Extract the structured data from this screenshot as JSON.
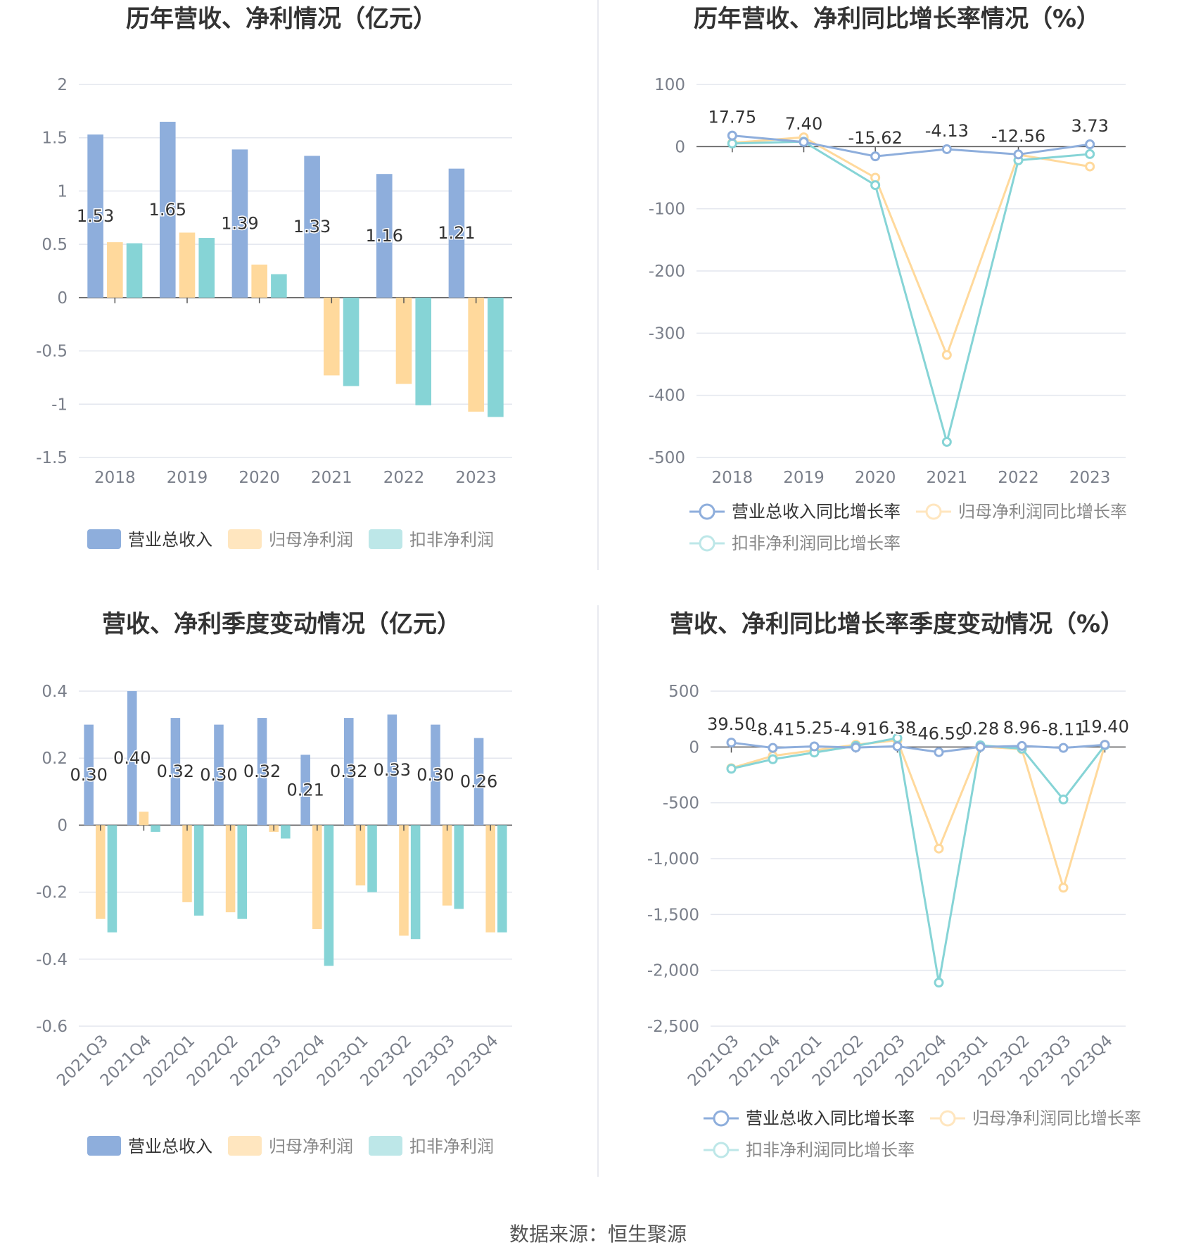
{
  "source_label": "数据来源：恒生聚源",
  "colors": {
    "revenue": "#8eaedc",
    "net_profit": "#ffd99c",
    "deducted_profit": "#86d4d6",
    "grid": "#e3e6ee",
    "axis_text": "#7a7f8a",
    "title": "#333333",
    "label": "#333333"
  },
  "chart_data": [
    {
      "type": "bar",
      "title": "历年营收、净利情况（亿元）",
      "categories": [
        "2018",
        "2019",
        "2020",
        "2021",
        "2022",
        "2023"
      ],
      "series": [
        {
          "name": "营业总收入",
          "values": [
            1.53,
            1.65,
            1.39,
            1.33,
            1.16,
            1.21
          ]
        },
        {
          "name": "归母净利润",
          "values": [
            0.52,
            0.61,
            0.31,
            -0.73,
            -0.81,
            -1.07
          ]
        },
        {
          "name": "扣非净利润",
          "values": [
            0.51,
            0.56,
            0.22,
            -0.83,
            -1.01,
            -1.12
          ]
        }
      ],
      "data_labels": [
        "1.53",
        "1.65",
        "1.39",
        "1.33",
        "1.16",
        "1.21"
      ],
      "yticks": [
        "2",
        "1.5",
        "1",
        "0.5",
        "0",
        "-0.5",
        "-1",
        "-1.5"
      ],
      "ylim": [
        -1.5,
        2
      ],
      "legend_position": "bottom",
      "grid": true
    },
    {
      "type": "line",
      "title": "历年营收、净利同比增长率情况（%）",
      "categories": [
        "2018",
        "2019",
        "2020",
        "2021",
        "2022",
        "2023"
      ],
      "series": [
        {
          "name": "营业总收入同比增长率",
          "values": [
            17.75,
            7.4,
            -15.62,
            -4.13,
            -12.56,
            3.73
          ]
        },
        {
          "name": "归母净利润同比增长率",
          "values": [
            6,
            15,
            -50,
            -335,
            -13,
            -32
          ]
        },
        {
          "name": "扣非净利润同比增长率",
          "values": [
            5,
            8,
            -62,
            -475,
            -22,
            -12
          ]
        }
      ],
      "data_labels": [
        "17.75",
        "7.40",
        "-15.62",
        "-4.13",
        "-12.56",
        "3.73"
      ],
      "yticks": [
        "100",
        "0",
        "-100",
        "-200",
        "-300",
        "-400",
        "-500"
      ],
      "ylim": [
        -500,
        100
      ],
      "legend_position": "bottom",
      "grid": true
    },
    {
      "type": "bar",
      "title": "营收、净利季度变动情况（亿元）",
      "categories": [
        "2021Q3",
        "2021Q4",
        "2022Q1",
        "2022Q2",
        "2022Q3",
        "2022Q4",
        "2023Q1",
        "2023Q2",
        "2023Q3",
        "2023Q4"
      ],
      "series": [
        {
          "name": "营业总收入",
          "values": [
            0.3,
            0.4,
            0.32,
            0.3,
            0.32,
            0.21,
            0.32,
            0.33,
            0.3,
            0.26
          ]
        },
        {
          "name": "归母净利润",
          "values": [
            -0.28,
            0.04,
            -0.23,
            -0.26,
            -0.02,
            -0.31,
            -0.18,
            -0.33,
            -0.24,
            -0.32
          ]
        },
        {
          "name": "扣非净利润",
          "values": [
            -0.32,
            -0.02,
            -0.27,
            -0.28,
            -0.04,
            -0.42,
            -0.2,
            -0.34,
            -0.25,
            -0.32
          ]
        }
      ],
      "data_labels": [
        "0.30",
        "0.40",
        "0.32",
        "0.30",
        "0.32",
        "0.21",
        "0.32",
        "0.33",
        "0.30",
        "0.26"
      ],
      "yticks": [
        "0.4",
        "0.2",
        "0",
        "-0.2",
        "-0.4",
        "-0.6"
      ],
      "ylim": [
        -0.6,
        0.4
      ],
      "legend_position": "bottom",
      "grid": true
    },
    {
      "type": "line",
      "title": "营收、净利同比增长率季度变动情况（%）",
      "categories": [
        "2021Q3",
        "2021Q4",
        "2022Q1",
        "2022Q2",
        "2022Q3",
        "2022Q4",
        "2023Q1",
        "2023Q2",
        "2023Q3",
        "2023Q4"
      ],
      "series": [
        {
          "name": "营业总收入同比增长率",
          "values": [
            39.5,
            -8.41,
            5.25,
            -4.91,
            6.38,
            -46.59,
            0.28,
            8.96,
            -8.11,
            19.4
          ]
        },
        {
          "name": "归母净利润同比增长率",
          "values": [
            -190,
            -80,
            -30,
            20,
            60,
            -910,
            5,
            -20,
            -1260,
            20
          ]
        },
        {
          "name": "扣非净利润同比增长率",
          "values": [
            -195,
            -110,
            -50,
            10,
            80,
            -2110,
            15,
            -15,
            -470,
            15
          ]
        }
      ],
      "data_labels": [
        "39.50",
        "-8.41",
        "5.25",
        "-4.91",
        "6.38",
        "-46.59",
        "0.28",
        "8.96",
        "-8.11",
        "19.40"
      ],
      "yticks": [
        "500",
        "0",
        "-500",
        "-1,000",
        "-1,500",
        "-2,000",
        "-2,500"
      ],
      "ylim": [
        -2500,
        500
      ],
      "legend_position": "bottom",
      "grid": true
    }
  ]
}
